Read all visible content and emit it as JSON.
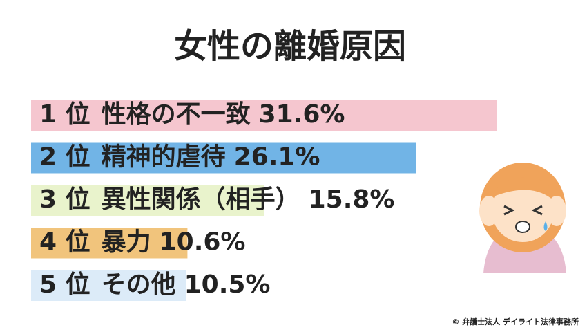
{
  "chart_data": {
    "type": "bar",
    "orientation": "horizontal",
    "title": "女性の離婚原因",
    "ranks": [
      "1 位",
      "2 位",
      "3 位",
      "4 位",
      "5 位"
    ],
    "categories": [
      "性格の不一致",
      "精神的虐待",
      "異性関係（相手）",
      "暴力",
      "その他"
    ],
    "values": [
      31.6,
      26.1,
      15.8,
      10.6,
      10.5
    ],
    "value_labels": [
      "31.6%",
      "26.1%",
      "15.8%",
      "10.6%",
      "10.5%"
    ],
    "colors": [
      "#f5c6cf",
      "#71b4e6",
      "#e9f3cc",
      "#f1c47c",
      "#dcebf8"
    ],
    "credit": "© 弁護士法人 デイライト法律事務所"
  }
}
